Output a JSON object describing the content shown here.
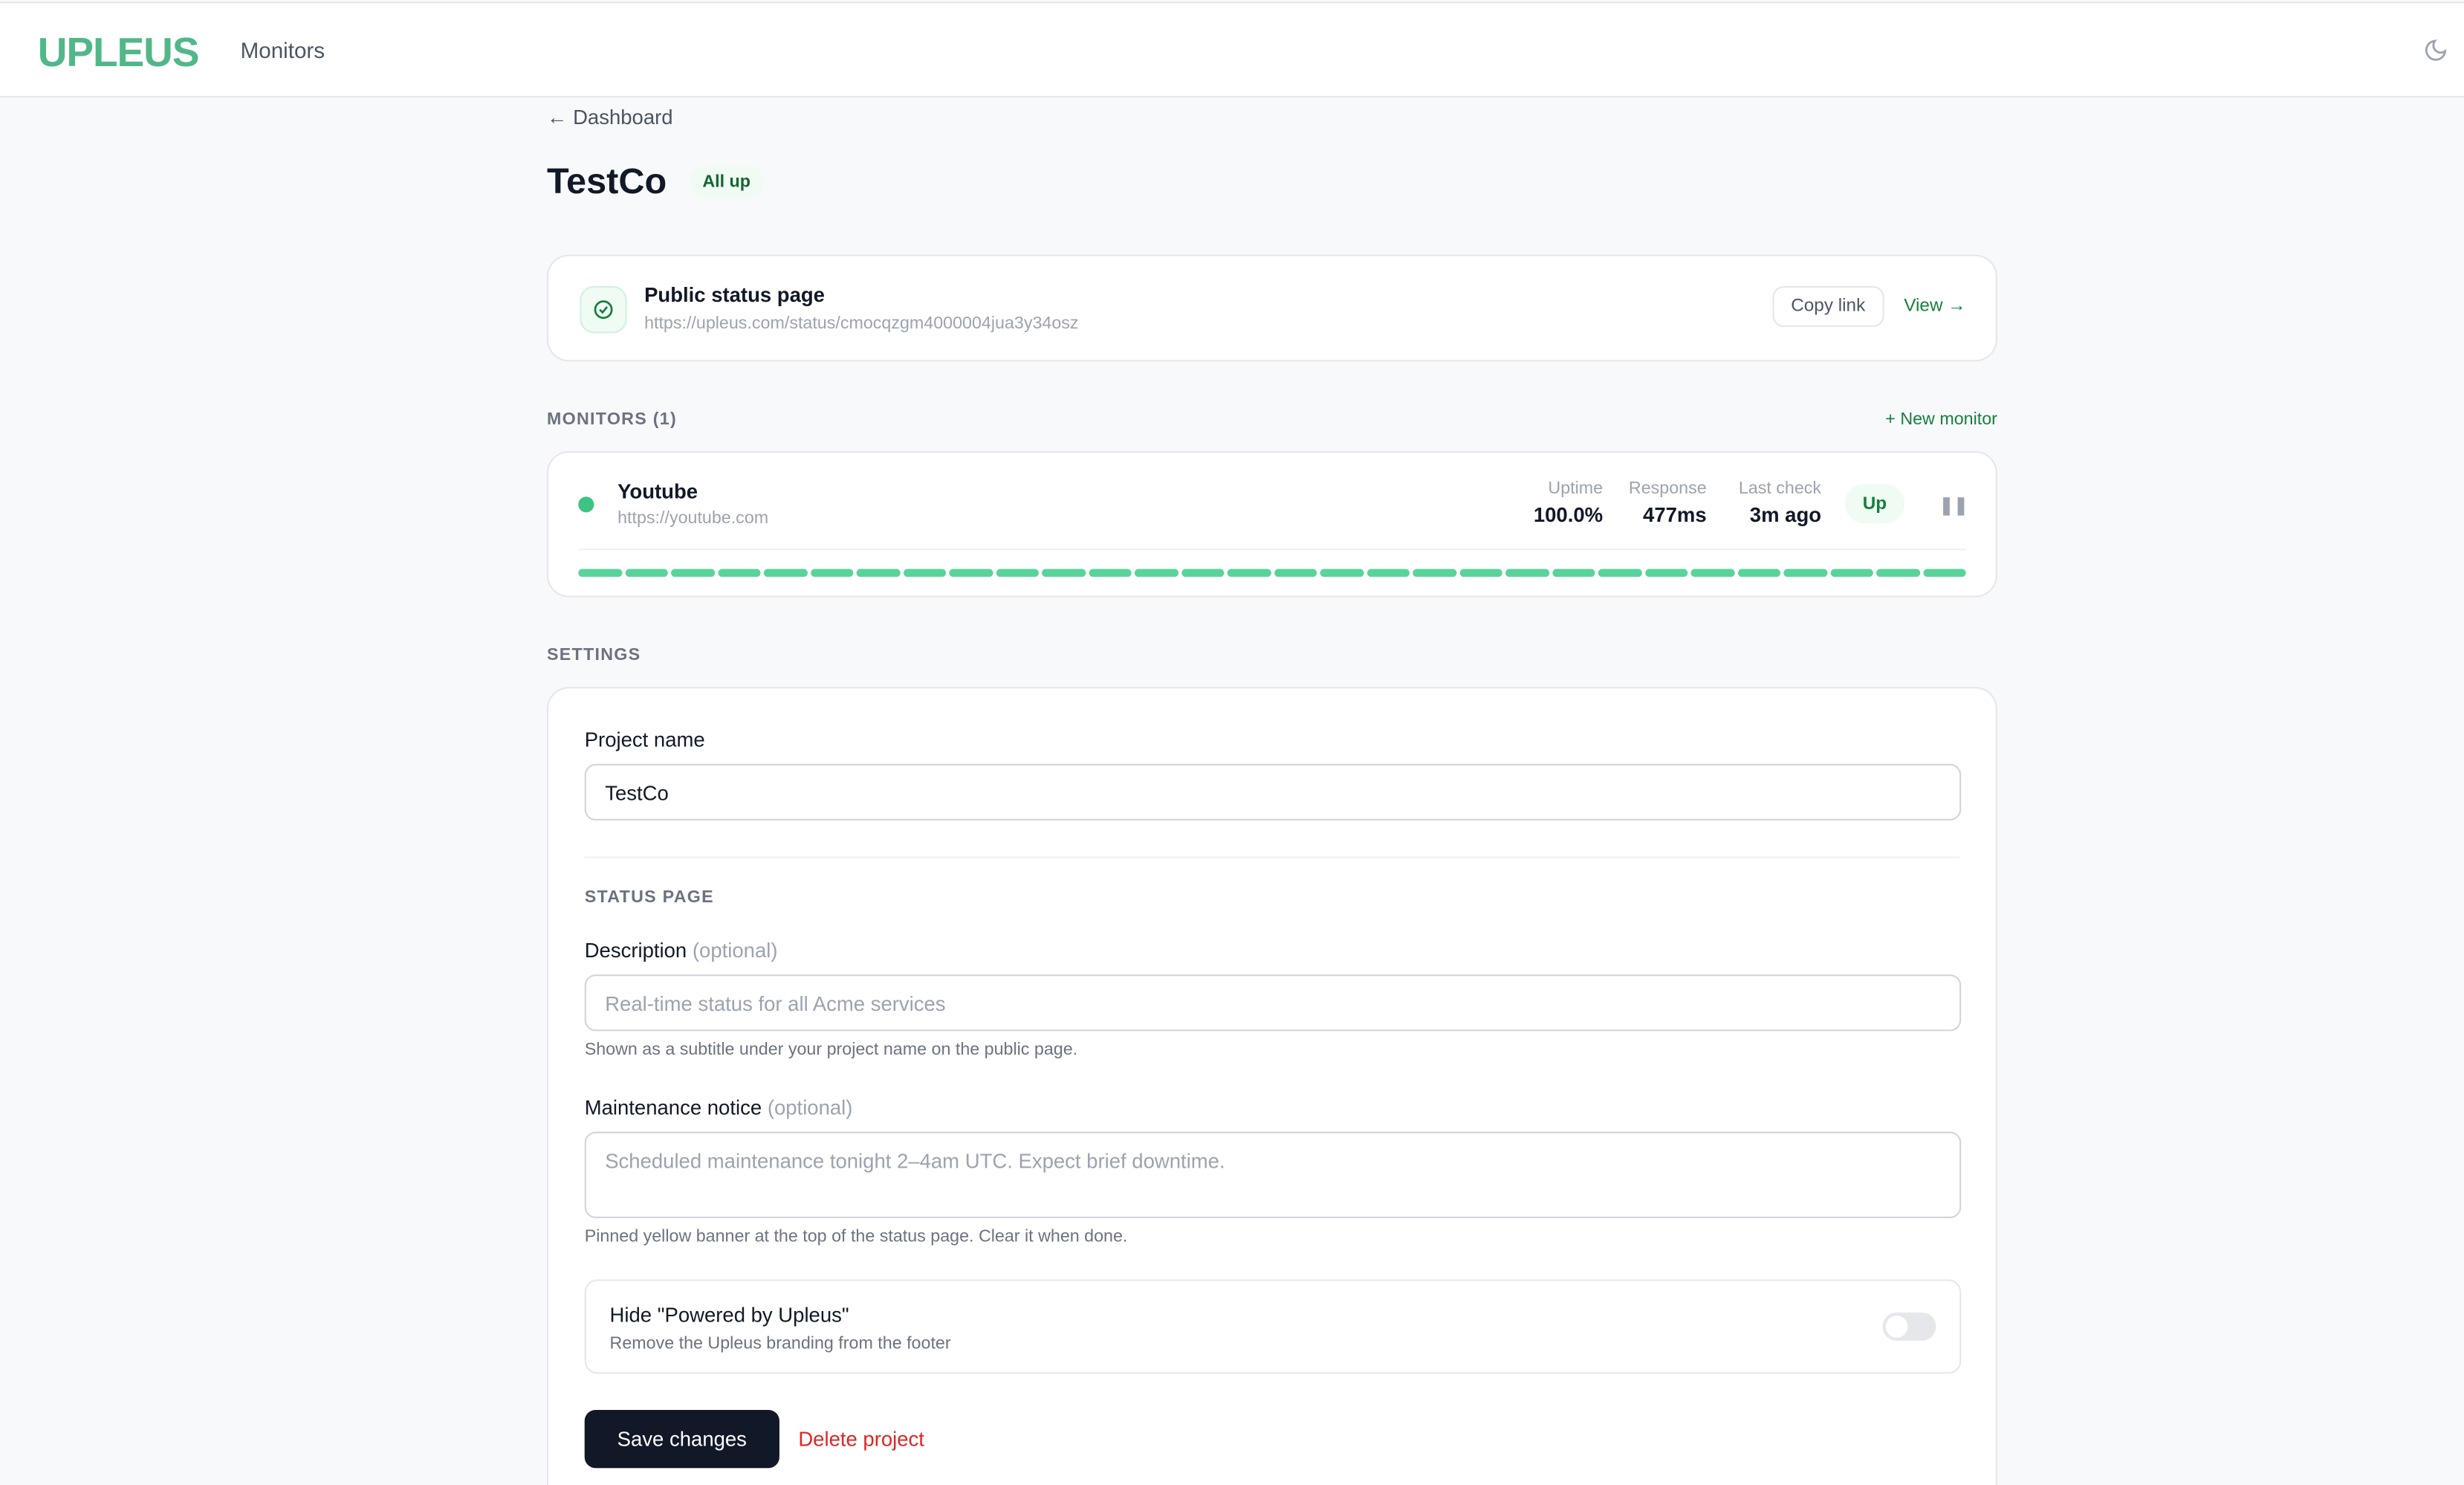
{
  "header": {
    "logo": "UPLEUS",
    "nav": "Monitors",
    "theme_icon": "moon-icon"
  },
  "breadcrumb": "← Dashboard",
  "project": {
    "title": "TestCo",
    "status": "All up"
  },
  "status_page": {
    "title": "Public status page",
    "url": "https://upleus.com/status/cmocqzgm4000004jua3y34osz",
    "copy": "Copy link",
    "view": "View →"
  },
  "monitors": {
    "heading": "MONITORS (1)",
    "new": "+ New monitor",
    "items": [
      {
        "name": "Youtube",
        "url": "https://youtube.com",
        "uptime_label": "Uptime",
        "uptime": "100.0%",
        "response_label": "Response",
        "response": "477ms",
        "last_label": "Last check",
        "last": "3m ago",
        "status": "Up",
        "history": [
          "up",
          "up",
          "up",
          "up",
          "up",
          "up",
          "up",
          "up",
          "up",
          "up",
          "up",
          "up",
          "up",
          "up",
          "up",
          "up",
          "up",
          "up",
          "up",
          "up",
          "up",
          "up",
          "up",
          "up",
          "up",
          "up",
          "up",
          "up",
          "up",
          "up"
        ]
      }
    ]
  },
  "settings": {
    "heading": "SETTINGS",
    "project_name_label": "Project name",
    "project_name": "TestCo",
    "status_page_heading": "STATUS PAGE",
    "description_label": "Description",
    "optional": "(optional)",
    "description_placeholder": "Real-time status for all Acme services",
    "description_hint": "Shown as a subtitle under your project name on the public page.",
    "maintenance_label": "Maintenance notice",
    "maintenance_placeholder": "Scheduled maintenance tonight 2–4am UTC. Expect brief downtime.",
    "maintenance_hint": "Pinned yellow banner at the top of the status page. Clear it when done.",
    "branding_title": "Hide \"Powered by Upleus\"",
    "branding_desc": "Remove the Upleus branding from the footer",
    "branding_enabled": false,
    "save": "Save changes",
    "delete": "Delete project"
  },
  "colors": {
    "accent": "#15803d",
    "logo": "#52b788",
    "up_bar": "#58d49a",
    "danger": "#dc2626"
  }
}
